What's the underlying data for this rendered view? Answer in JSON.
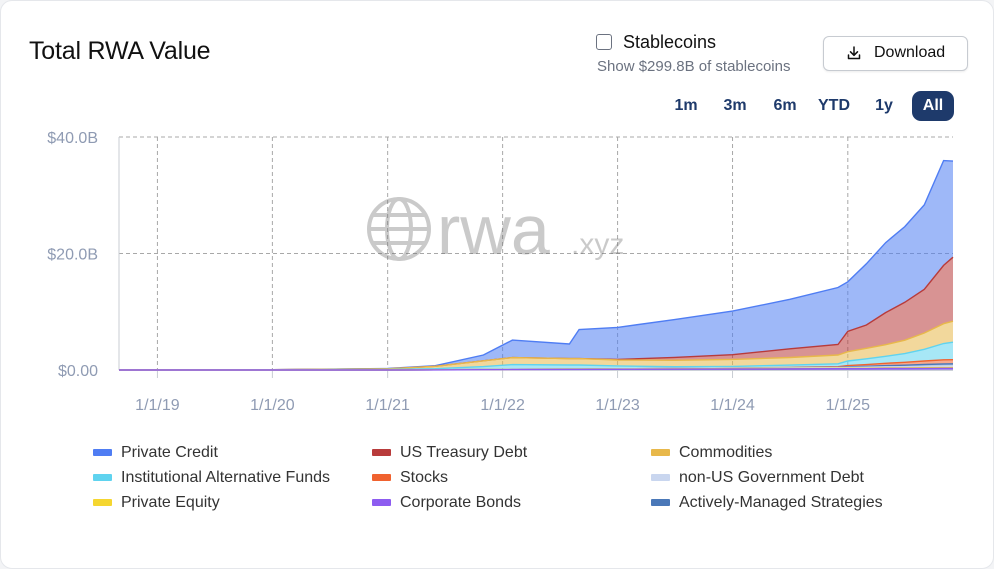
{
  "header": {
    "title": "Total RWA Value",
    "stablecoins_label": "Stablecoins",
    "stablecoins_sub": "Show $299.8B of stablecoins",
    "download_label": "Download"
  },
  "ranges": [
    {
      "label": "1m",
      "active": false
    },
    {
      "label": "3m",
      "active": false
    },
    {
      "label": "6m",
      "active": false
    },
    {
      "label": "YTD",
      "active": false
    },
    {
      "label": "1y",
      "active": false
    },
    {
      "label": "All",
      "active": true
    }
  ],
  "watermark": {
    "main": "rwa",
    "suffix": ".xyz"
  },
  "colors": {
    "private_credit": "#4f7df3",
    "us_treasury": "#b83b3b",
    "commodities": "#e8b84a",
    "institutional_funds": "#5fd3ef",
    "stocks": "#f0622f",
    "non_us_gov": "#c9d6ef",
    "private_equity": "#f5d630",
    "corporate_bonds": "#8d5cf0",
    "actively_managed": "#4a78b8",
    "axis_text": "#8f9bb3",
    "title_text": "#111111",
    "range_active": "#1e3a6b"
  },
  "chart_data": {
    "type": "area",
    "stacking": "stacked",
    "title": "Total RWA Value",
    "y_ticks": [
      "$0.00",
      "$20.0B",
      "$40.0B"
    ],
    "ylim": [
      0,
      40
    ],
    "y_unit": "$B",
    "x_ticks": [
      "1/1/19",
      "1/1/20",
      "1/1/21",
      "1/1/22",
      "1/1/23",
      "1/1/24",
      "1/1/25"
    ],
    "xlim": [
      "2018-09-01",
      "2025-12-01"
    ],
    "grid": true,
    "legend_position": "bottom",
    "x": [
      "2018-09-01",
      "2020-01-01",
      "2021-01-01",
      "2021-06-01",
      "2021-11-01",
      "2022-02-01",
      "2022-08-01",
      "2022-09-01",
      "2023-01-01",
      "2023-07-01",
      "2024-01-01",
      "2024-07-01",
      "2024-12-01",
      "2025-01-01",
      "2025-03-01",
      "2025-05-01",
      "2025-07-01",
      "2025-09-01",
      "2025-11-01",
      "2025-12-01"
    ],
    "series": [
      {
        "name": "Corporate Bonds",
        "values": [
          0,
          0,
          0,
          0.02,
          0.05,
          0.08,
          0.1,
          0.1,
          0.12,
          0.15,
          0.18,
          0.2,
          0.22,
          0.22,
          0.22,
          0.25,
          0.25,
          0.28,
          0.3,
          0.3
        ]
      },
      {
        "name": "Private Equity",
        "values": [
          0,
          0,
          0,
          0.01,
          0.02,
          0.03,
          0.03,
          0.03,
          0.04,
          0.05,
          0.06,
          0.07,
          0.08,
          0.08,
          0.08,
          0.1,
          0.1,
          0.12,
          0.12,
          0.12
        ]
      },
      {
        "name": "non-US Government Debt",
        "values": [
          0,
          0,
          0,
          0,
          0.01,
          0.02,
          0.03,
          0.03,
          0.05,
          0.06,
          0.08,
          0.1,
          0.12,
          0.15,
          0.18,
          0.2,
          0.22,
          0.25,
          0.28,
          0.3
        ]
      },
      {
        "name": "Actively-Managed Strategies",
        "values": [
          0,
          0,
          0,
          0,
          0,
          0,
          0,
          0,
          0,
          0,
          0,
          0.02,
          0.05,
          0.1,
          0.15,
          0.2,
          0.25,
          0.3,
          0.35,
          0.35
        ]
      },
      {
        "name": "Stocks",
        "values": [
          0,
          0,
          0,
          0,
          0,
          0,
          0,
          0,
          0,
          0,
          0,
          0.05,
          0.1,
          0.2,
          0.3,
          0.4,
          0.5,
          0.6,
          0.7,
          0.7
        ]
      },
      {
        "name": "Institutional Alternative Funds",
        "values": [
          0,
          0.05,
          0.1,
          0.2,
          0.5,
          0.8,
          0.7,
          0.7,
          0.5,
          0.3,
          0.3,
          0.4,
          0.5,
          0.8,
          1.0,
          1.2,
          1.5,
          2.0,
          2.8,
          3.0
        ]
      },
      {
        "name": "Commodities",
        "values": [
          0,
          0,
          0.1,
          0.4,
          1.0,
          1.2,
          1.1,
          1.1,
          1.0,
          1.1,
          1.2,
          1.3,
          1.5,
          1.6,
          1.8,
          2.0,
          2.3,
          2.8,
          3.4,
          3.6
        ]
      },
      {
        "name": "US Treasury Debt",
        "values": [
          0,
          0,
          0,
          0,
          0,
          0,
          0,
          0,
          0.1,
          0.5,
          0.8,
          1.5,
          1.8,
          3.5,
          4.0,
          5.5,
          6.5,
          7.5,
          10.0,
          11.0
        ]
      },
      {
        "name": "Private Credit",
        "values": [
          0,
          0.01,
          0.05,
          0.1,
          1.0,
          3.0,
          2.5,
          5.0,
          5.5,
          6.5,
          7.5,
          8.5,
          9.8,
          8.5,
          10.5,
          12.0,
          13.0,
          14.5,
          18.0,
          16.5
        ]
      }
    ],
    "legend_order": [
      "Private Credit",
      "US Treasury Debt",
      "Commodities",
      "Institutional Alternative Funds",
      "Stocks",
      "non-US Government Debt",
      "Private Equity",
      "Corporate Bonds",
      "Actively-Managed Strategies"
    ]
  }
}
